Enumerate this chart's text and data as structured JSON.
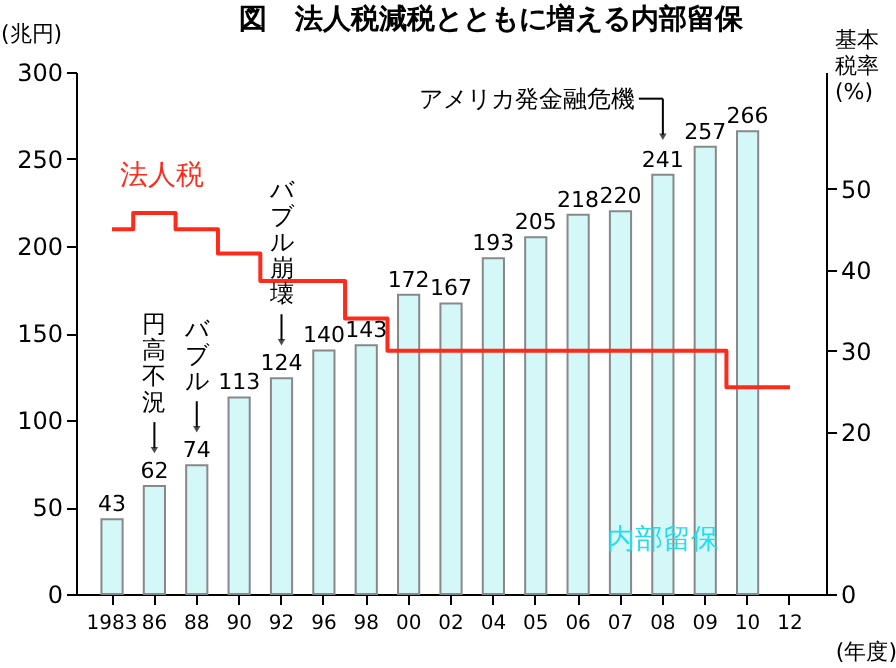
{
  "chart_data": {
    "type": "bar",
    "title": "図　法人税減税とともに増える内部留保",
    "ylabel": "(兆円)",
    "y2label": "基本税率(%)",
    "xlabel": "(年度)",
    "categories": [
      "1983",
      "86",
      "88",
      "90",
      "92",
      "96",
      "98",
      "00",
      "02",
      "04",
      "05",
      "06",
      "07",
      "08",
      "09",
      "10",
      "12"
    ],
    "series": [
      {
        "name": "内部留保",
        "color": "#d4f8f8",
        "values": [
          43,
          62,
          74,
          113,
          124,
          140,
          143,
          172,
          167,
          193,
          205,
          218,
          220,
          241,
          257,
          266,
          null
        ],
        "value_labels": [
          "43",
          "62",
          "74",
          "113",
          "124",
          "140",
          "143",
          "172",
          "167",
          "193",
          "205",
          "218",
          "220",
          "241",
          "257",
          "266",
          null
        ]
      },
      {
        "name": "法人税",
        "type": "step",
        "color": "#ff2a1a",
        "axis": "y2",
        "values": [
          45,
          47,
          45,
          42,
          38.6,
          38.6,
          34,
          30,
          30,
          30,
          30,
          30,
          30,
          30,
          30,
          25.5,
          25.5
        ]
      }
    ],
    "ylim": [
      0,
      300
    ],
    "yticks": [
      0,
      50,
      100,
      150,
      200,
      250,
      300
    ],
    "y2lim": [
      0,
      64.4
    ],
    "y2ticks": [
      0,
      20,
      30,
      40,
      50
    ],
    "annotations": [
      {
        "text": "円高不況",
        "x": "86",
        "y": 62
      },
      {
        "text": "バブル",
        "x": "88",
        "y": 74
      },
      {
        "text": "バブル崩壊",
        "x": "92",
        "y": 124
      },
      {
        "text": "アメリカ発金融危機",
        "x": "08",
        "y": 241
      }
    ],
    "grid": false
  }
}
